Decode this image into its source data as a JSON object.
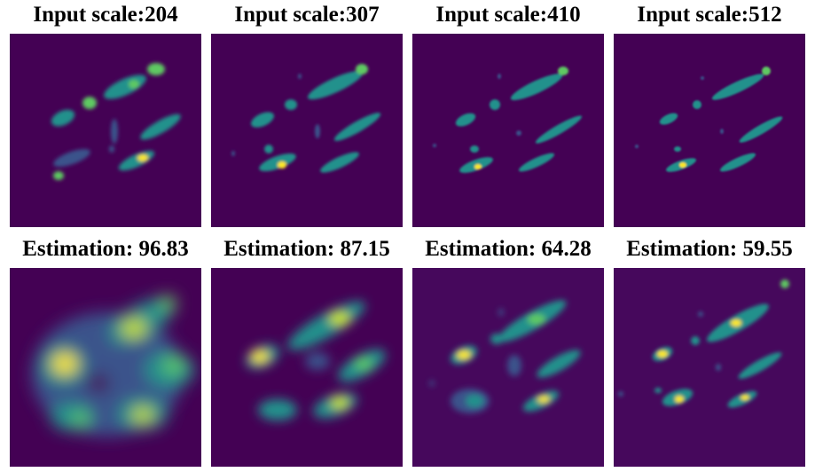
{
  "panels": [
    {
      "title": "Input scale:204",
      "kind": "density-map-input"
    },
    {
      "title": "Input scale:307",
      "kind": "density-map-input"
    },
    {
      "title": "Input scale:410",
      "kind": "density-map-input"
    },
    {
      "title": "Input scale:512",
      "kind": "density-map-input"
    },
    {
      "title": "Estimation: 96.83",
      "kind": "density-map-estimate"
    },
    {
      "title": "Estimation: 87.15",
      "kind": "density-map-estimate"
    },
    {
      "title": "Estimation: 64.28",
      "kind": "density-map-estimate"
    },
    {
      "title": "Estimation: 59.55",
      "kind": "density-map-estimate"
    }
  ],
  "colors": {
    "background": "#440154",
    "low": "#3b528b",
    "mid": "#21918c",
    "high": "#5ec962",
    "peak": "#fde725"
  }
}
